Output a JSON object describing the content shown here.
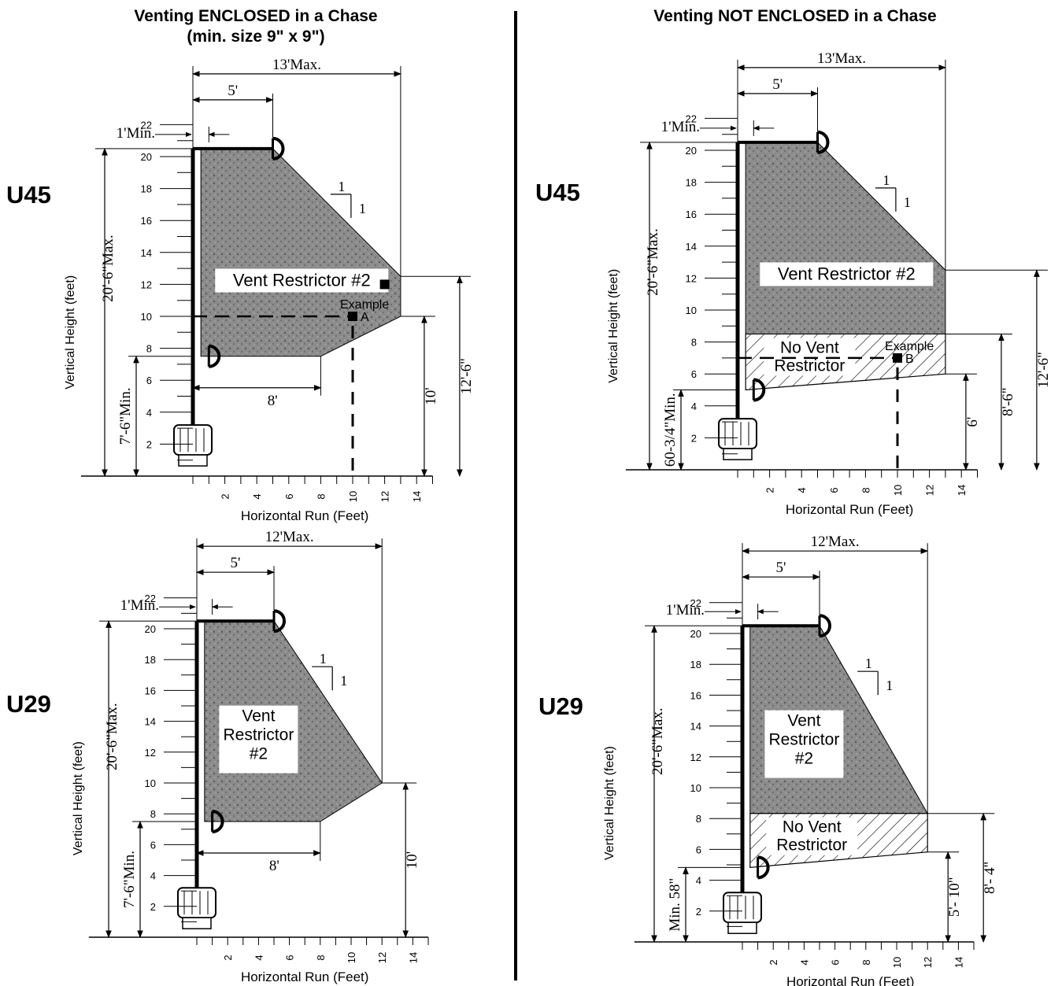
{
  "titles": {
    "left": "Venting ENCLOSED in a Chase",
    "left_sub": "(min. size 9\" x 9\")",
    "right": "Venting NOT ENCLOSED in a Chase"
  },
  "colors": {
    "zone_fill": "#8c8c8c",
    "stroke": "#000000",
    "background": "#ffffff"
  },
  "panels": [
    {
      "id": "enc-u45",
      "model": "U45",
      "x_axis_label": "Horizontal Run (Feet)",
      "y_axis_label": "Vertical Height (feet)",
      "y_ticks": [
        "2",
        "4",
        "6",
        "8",
        "10",
        "12",
        "14",
        "16",
        "18",
        "20",
        "22"
      ],
      "x_ticks": [
        "2",
        "4",
        "6",
        "8",
        "10",
        "12",
        "14"
      ],
      "top_dim_max": "13'Max.",
      "top_dim_5": "5'",
      "min_label": "1'Min.",
      "vert_max_label": "20'-6\"Max.",
      "vert_min_label": "7'-6\"Min.",
      "bottom_dim": "8'",
      "slope_top": "1",
      "slope_side": "1",
      "zone_label": "Vent Restrictor #2",
      "example_label": "Example",
      "example_letter": "A",
      "right_dims": [
        "10'",
        "12'-6\""
      ],
      "shape": {
        "top": 20.5,
        "bottom": 7.5,
        "top_right": 5,
        "right_x": 13,
        "right_top": 12.5,
        "right_bottom": 10,
        "bottom_right": 8
      },
      "example_point": {
        "x": 10,
        "y": 10
      },
      "example_point2": {
        "x": 12,
        "y": 12
      }
    },
    {
      "id": "enc-u29",
      "model": "U29",
      "x_axis_label": "Horizontal Run (Feet)",
      "y_axis_label": "Vertical Height (feet)",
      "y_ticks": [
        "2",
        "4",
        "6",
        "8",
        "10",
        "12",
        "14",
        "16",
        "18",
        "20",
        "22"
      ],
      "x_ticks": [
        "2",
        "4",
        "6",
        "8",
        "10",
        "12",
        "14"
      ],
      "top_dim_max": "12'Max.",
      "top_dim_5": "5'",
      "min_label": "1'Min.",
      "vert_max_label": "20'-6\"Max.",
      "vert_min_label": "7'-6\"Min.",
      "bottom_dim": "8'",
      "slope_top": "1",
      "slope_side": "1",
      "zone_label_lines": [
        "Vent",
        "Restrictor",
        "#2"
      ],
      "right_dims": [
        "10'"
      ],
      "shape": {
        "top": 20.5,
        "bottom": 7.5,
        "top_right": 5,
        "right_x": 12,
        "right_top": 10,
        "right_bottom": 10,
        "bottom_right": 8
      }
    },
    {
      "id": "notenc-u45",
      "model": "U45",
      "x_axis_label": "Horizontal Run (Feet)",
      "y_axis_label": "Vertical Height (feet)",
      "y_ticks": [
        "2",
        "4",
        "6",
        "8",
        "10",
        "12",
        "14",
        "16",
        "18",
        "20",
        "22"
      ],
      "x_ticks": [
        "2",
        "4",
        "6",
        "8",
        "10",
        "12",
        "14"
      ],
      "top_dim_max": "13'Max.",
      "top_dim_5": "5'",
      "min_label": "1'Min.",
      "vert_max_label": "20'-6\"Max.",
      "vert_min_label": "60-3/4\"Min.",
      "slope_top": "1",
      "slope_side": "1",
      "zone_label": "Vent Restrictor #2",
      "no_vent_lines": [
        "No Vent",
        "Restrictor"
      ],
      "example_label": "Example",
      "example_letter": "B",
      "right_dims": [
        "6'",
        "8'-6\"",
        "12'-6\""
      ],
      "shape": {
        "top": 20.5,
        "top_right": 5,
        "right_x": 13,
        "right_top": 12.5,
        "split": 8.5,
        "right_bottom": 6,
        "bottom": 5
      },
      "example_point": {
        "x": 10,
        "y": 7
      }
    },
    {
      "id": "notenc-u29",
      "model": "U29",
      "x_axis_label": "Horizontal Run (Feet)",
      "y_axis_label": "Vertical Height (feet)",
      "y_ticks": [
        "2",
        "4",
        "6",
        "8",
        "10",
        "12",
        "14",
        "16",
        "18",
        "20",
        "22"
      ],
      "x_ticks": [
        "2",
        "4",
        "6",
        "8",
        "10",
        "12",
        "14"
      ],
      "top_dim_max": "12'Max.",
      "top_dim_5": "5'",
      "min_label": "1'Min.",
      "vert_max_label": "20'-6\"Max.",
      "vert_min_label": "Min. 58\"",
      "slope_top": "1",
      "slope_side": "1",
      "zone_label_lines": [
        "Vent",
        "Restrictor",
        "#2"
      ],
      "no_vent_lines": [
        "No Vent",
        "Restrictor"
      ],
      "right_dims": [
        "5'- 10\"",
        "8'- 4\""
      ],
      "shape": {
        "top": 20.5,
        "top_right": 5,
        "right_x": 12,
        "right_top": 8.33,
        "split": 8.33,
        "right_bottom": 5.83,
        "bottom": 4.83
      }
    }
  ]
}
